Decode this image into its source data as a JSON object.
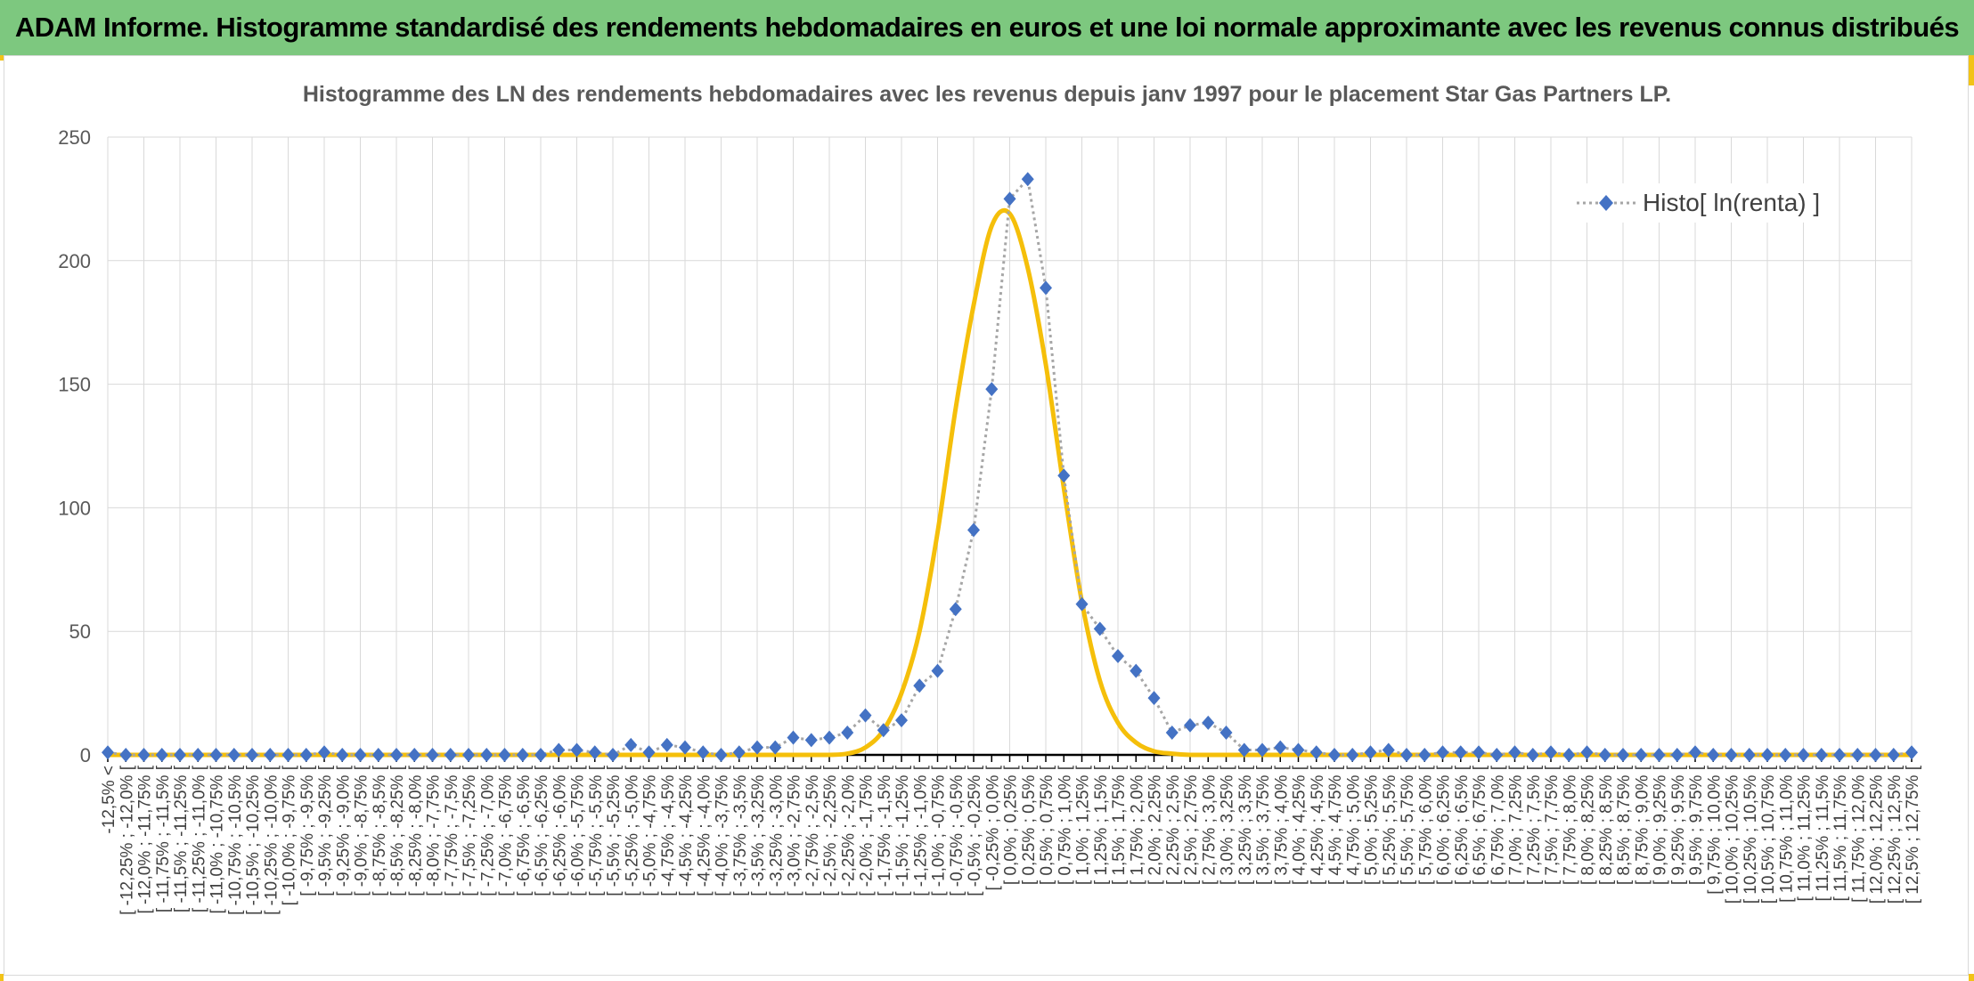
{
  "header": {
    "title": "ADAM Informe. Histogramme standardisé des rendements hebdomadaires en euros et une loi normale approximante avec les revenus connus distribués"
  },
  "chart_data": {
    "type": "line",
    "title": "Histogramme des LN des rendements hebdomadaires avec les revenus depuis janv 1997 pour le placement Star Gas Partners LP.",
    "ylim": [
      0,
      250
    ],
    "yticks": [
      0,
      50,
      100,
      150,
      200,
      250
    ],
    "grid": true,
    "legend_position": "top-right",
    "colors": {
      "histogram": "#4472c4",
      "normal": "#f5bf0a",
      "connector": "#a6a6a6"
    },
    "categories": [
      "-12,5% <",
      "[ -12,25% ; -12,0% [",
      "[ -12,0% ; -11,75% [",
      "[ -11,75% ; -11,5% [",
      "[ -11,5% ; -11,25% [",
      "[ -11,25% ; -11,0% [",
      "[ -11,0% ; -10,75% [",
      "[ -10,75% ; -10,5% [",
      "[ -10,5% ; -10,25% [",
      "[ -10,25% ; -10,0% [",
      "[ -10,0% ; -9,75% [",
      "[ -9,75% ; -9,5% [",
      "[ -9,5% ; -9,25% [",
      "[ -9,25% ; -9,0% [",
      "[ -9,0% ; -8,75% [",
      "[ -8,75% ; -8,5% [",
      "[ -8,5% ; -8,25% [",
      "[ -8,25% ; -8,0% [",
      "[ -8,0% ; -7,75% [",
      "[ -7,75% ; -7,5% [",
      "[ -7,5% ; -7,25% [",
      "[ -7,25% ; -7,0% [",
      "[ -7,0% ; -6,75% [",
      "[ -6,75% ; -6,5% [",
      "[ -6,5% ; -6,25% [",
      "[ -6,25% ; -6,0% [",
      "[ -6,0% ; -5,75% [",
      "[ -5,75% ; -5,5% [",
      "[ -5,5% ; -5,25% [",
      "[ -5,25% ; -5,0% [",
      "[ -5,0% ; -4,75% [",
      "[ -4,75% ; -4,5% [",
      "[ -4,5% ; -4,25% [",
      "[ -4,25% ; -4,0% [",
      "[ -4,0% ; -3,75% [",
      "[ -3,75% ; -3,5% [",
      "[ -3,5% ; -3,25% [",
      "[ -3,25% ; -3,0% [",
      "[ -3,0% ; -2,75% [",
      "[ -2,75% ; -2,5% [",
      "[ -2,5% ; -2,25% [",
      "[ -2,25% ; -2,0% [",
      "[ -2,0% ; -1,75% [",
      "[ -1,75% ; -1,5% [",
      "[ -1,5% ; -1,25% [",
      "[ -1,25% ; -1,0% [",
      "[ -1,0% ; -0,75% [",
      "[ -0,75% ; -0,5% [",
      "[ -0,5% ; -0,25% [",
      "[ -0,25% ; 0,0% [",
      "[ 0,0% ; 0,25% [",
      "[ 0,25% ; 0,5% [",
      "[ 0,5% ; 0,75% [",
      "[ 0,75% ; 1,0% [",
      "[ 1,0% ; 1,25% [",
      "[ 1,25% ; 1,5% [",
      "[ 1,5% ; 1,75% [",
      "[ 1,75% ; 2,0% [",
      "[ 2,0% ; 2,25% [",
      "[ 2,25% ; 2,5% [",
      "[ 2,5% ; 2,75% [",
      "[ 2,75% ; 3,0% [",
      "[ 3,0% ; 3,25% [",
      "[ 3,25% ; 3,5% [",
      "[ 3,5% ; 3,75% [",
      "[ 3,75% ; 4,0% [",
      "[ 4,0% ; 4,25% [",
      "[ 4,25% ; 4,5% [",
      "[ 4,5% ; 4,75% [",
      "[ 4,75% ; 5,0% [",
      "[ 5,0% ; 5,25% [",
      "[ 5,25% ; 5,5% [",
      "[ 5,5% ; 5,75% [",
      "[ 5,75% ; 6,0% [",
      "[ 6,0% ; 6,25% [",
      "[ 6,25% ; 6,5% [",
      "[ 6,5% ; 6,75% [",
      "[ 6,75% ; 7,0% [",
      "[ 7,0% ; 7,25% [",
      "[ 7,25% ; 7,5% [",
      "[ 7,5% ; 7,75% [",
      "[ 7,75% ; 8,0% [",
      "[ 8,0% ; 8,25% [",
      "[ 8,25% ; 8,5% [",
      "[ 8,5% ; 8,75% [",
      "[ 8,75% ; 9,0% [",
      "[ 9,0% ; 9,25% [",
      "[ 9,25% ; 9,5% [",
      "[ 9,5% ; 9,75% [",
      "[ 9,75% ; 10,0% [",
      "[ 10,0% ; 10,25% [",
      "[ 10,25% ; 10,5% [",
      "[ 10,5% ; 10,75% [",
      "[ 10,75% ; 11,0% [",
      "[ 11,0% ; 11,25% [",
      "[ 11,25% ; 11,5% [",
      "[ 11,5% ; 11,75% [",
      "[ 11,75% ; 12,0% [",
      "[ 12,0% ; 12,25% [",
      "[ 12,25% ; 12,5% [",
      "[ 12,5% ; 12,75% ["
    ],
    "series": [
      {
        "name": "Histo[ ln(renta) ]",
        "style": "diamond-markers-dotted",
        "values": [
          1,
          0,
          0,
          0,
          0,
          0,
          0,
          0,
          0,
          0,
          0,
          0,
          1,
          0,
          0,
          0,
          0,
          0,
          0,
          0,
          0,
          0,
          0,
          0,
          0,
          2,
          2,
          1,
          0,
          4,
          1,
          4,
          3,
          1,
          0,
          1,
          3,
          3,
          7,
          6,
          7,
          9,
          16,
          10,
          14,
          28,
          34,
          59,
          91,
          148,
          225,
          233,
          189,
          113,
          61,
          51,
          40,
          34,
          23,
          9,
          12,
          13,
          9,
          2,
          2,
          3,
          2,
          1,
          0,
          0,
          1,
          2,
          0,
          0,
          1,
          1,
          1,
          0,
          1,
          0,
          1,
          0,
          1,
          0,
          0,
          0,
          0,
          0,
          1,
          0,
          0,
          0,
          0,
          0,
          0,
          0,
          0,
          0,
          0,
          0,
          1
        ]
      },
      {
        "style": "solid-line",
        "values": [
          0,
          0,
          0,
          0,
          0,
          0,
          0,
          0,
          0,
          0,
          0,
          0,
          0,
          0,
          0,
          0,
          0,
          0,
          0,
          0,
          0,
          0,
          0,
          0,
          0,
          0,
          0,
          0,
          0,
          0,
          0,
          0,
          0,
          0,
          0,
          0,
          0,
          0,
          0,
          0,
          0,
          0.5,
          3,
          10,
          25,
          50,
          90,
          140,
          182,
          214,
          219,
          197,
          158,
          108,
          62,
          30,
          13,
          5,
          1.5,
          0.5,
          0,
          0,
          0,
          0,
          0,
          0,
          0,
          0,
          0,
          0,
          0,
          0,
          0,
          0,
          0,
          0,
          0,
          0,
          0,
          0,
          0,
          0,
          0,
          0,
          0,
          0,
          0,
          0,
          0,
          0,
          0,
          0,
          0,
          0,
          0,
          0,
          0,
          0,
          0,
          0,
          0
        ]
      }
    ]
  }
}
